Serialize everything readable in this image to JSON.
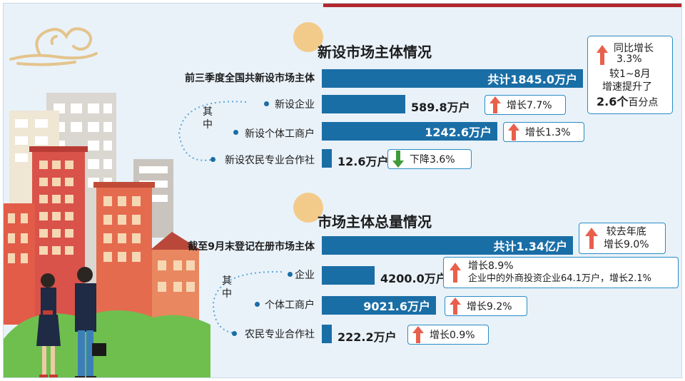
{
  "section1": {
    "title": "新设市场主体情况",
    "qizhong": [
      "其",
      "中"
    ],
    "total": {
      "label": "前三季度全国共新设市场主体",
      "value_text": "共计1845.0万户",
      "value": 1845.0
    },
    "note": {
      "line1": "同比增长",
      "line2": "3.3%",
      "line3": "较1~8月",
      "line4": "增速提升了",
      "line5_num": "2.6个",
      "line5_unit": "百分点"
    },
    "items": [
      {
        "label": "新设企业",
        "value": 589.8,
        "value_text": "589.8万户",
        "change": "增长7.7%",
        "direction": "up"
      },
      {
        "label": "新设个体工商户",
        "value": 1242.6,
        "value_text": "1242.6万户",
        "change": "增长1.3%",
        "direction": "up"
      },
      {
        "label": "新设农民专业合作社",
        "value": 12.6,
        "value_text": "12.6万户",
        "change": "下降3.6%",
        "direction": "down"
      }
    ]
  },
  "section2": {
    "title": "市场主体总量情况",
    "qizhong": [
      "其",
      "中"
    ],
    "total": {
      "label": "截至9月末登记在册市场主体",
      "value_text": "共计1.34亿户",
      "value": 13400
    },
    "total_note": {
      "line1": "较去年底",
      "line2": "增长9.0%"
    },
    "items": [
      {
        "label": "企业",
        "value": 4200.0,
        "value_text": "4200.0万户",
        "change": "增长8.9%",
        "extra": "企业中的外商投资企业64.1万户，增长2.1%",
        "direction": "up"
      },
      {
        "label": "个体工商户",
        "value": 9021.6,
        "value_text": "9021.6万户",
        "change": "增长9.2%",
        "direction": "up"
      },
      {
        "label": "农民专业合作社",
        "value": 222.2,
        "value_text": "222.2万户",
        "change": "增长0.9%",
        "direction": "up"
      }
    ]
  },
  "colors": {
    "bar": "#1a6ea6",
    "up_arrow": "#e8604c",
    "down_arrow": "#3f9b3a",
    "box_border": "#2a8cc4",
    "title_circle": "#f2cb8b",
    "accent": "#b3282d"
  },
  "chart_data": [
    {
      "type": "bar",
      "title": "新设市场主体情况",
      "categories": [
        "前三季度全国共新设市场主体",
        "新设企业",
        "新设个体工商户",
        "新设农民专业合作社"
      ],
      "values": [
        1845.0,
        589.8,
        1242.6,
        12.6
      ],
      "changes": [
        "同比增长3.3%",
        "增长7.7%",
        "增长1.3%",
        "下降3.6%"
      ]
    },
    {
      "type": "bar",
      "title": "市场主体总量情况",
      "categories": [
        "截至9月末登记在册市场主体",
        "企业",
        "个体工商户",
        "农民专业合作社"
      ],
      "values": [
        13400,
        4200.0,
        9021.6,
        222.2
      ],
      "changes": [
        "增长9.0%",
        "增长8.9%",
        "增长9.2%",
        "增长0.9%"
      ]
    }
  ]
}
